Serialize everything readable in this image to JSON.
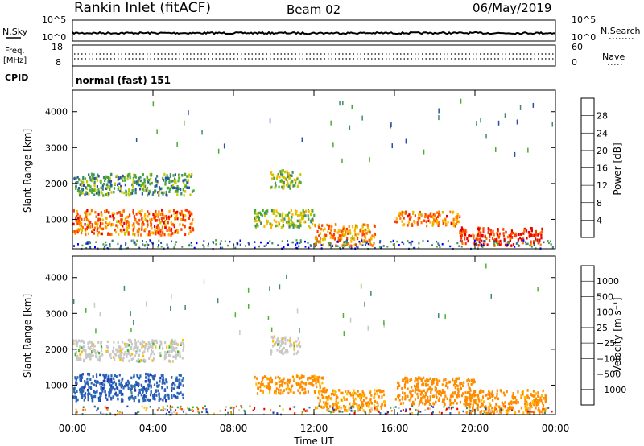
{
  "header": {
    "station": "Rankin Inlet (fitACF)",
    "beam": "Beam 02",
    "date": "06/May/2019"
  },
  "noise_panel": {
    "left_label": "N.Sky",
    "right_label": "N.Search",
    "left_ticks": [
      "10^5",
      "10^0"
    ],
    "right_ticks": [
      "10^5",
      "10^0"
    ]
  },
  "freq_panel": {
    "left_label_1": "Freq.",
    "left_label_2": "[MHz]",
    "right_label": "Nave",
    "left_ticks": [
      "18",
      "8"
    ],
    "right_ticks": [
      "60",
      "0"
    ]
  },
  "cpid": {
    "label": "CPID",
    "value": "normal (fast) 151"
  },
  "colors": {
    "power": [
      "#0000ff",
      "#2a4fa8",
      "#3c8c6a",
      "#4caa32",
      "#c8c800",
      "#ffb400",
      "#ff7800",
      "#ff3c00",
      "#e60000"
    ],
    "velocity": [
      "#e60000",
      "#ff5a00",
      "#ff8c00",
      "#ffbe00",
      "#c8c8c8",
      "#4cb432",
      "#3c8c6a",
      "#2a64b4",
      "#1e3cb4"
    ]
  },
  "chart_data": [
    {
      "type": "heatmap",
      "quantity": "power",
      "ylabel": "Slant Range [km]",
      "xlabel": "",
      "y_ticks": [
        1000,
        2000,
        3000,
        4000
      ],
      "ylim": [
        180,
        4600
      ],
      "colorbar_label": "Power [dB]",
      "colorbar_ticks": [
        "4",
        "8",
        "12",
        "16",
        "20",
        "24",
        "28"
      ],
      "colorbar_range": [
        0,
        30
      ],
      "features": [
        {
          "t_start": 0.0,
          "t_end": 6.0,
          "r_min": 600,
          "r_max": 1300,
          "level": 22
        },
        {
          "t_start": 0.0,
          "t_end": 6.0,
          "r_min": 1700,
          "r_max": 2300,
          "level": 10
        },
        {
          "t_start": 9.8,
          "t_end": 11.3,
          "r_min": 1900,
          "r_max": 2400,
          "level": 14
        },
        {
          "t_start": 9.0,
          "t_end": 12.0,
          "r_min": 800,
          "r_max": 1300,
          "level": 14
        },
        {
          "t_start": 12.0,
          "t_end": 15.0,
          "r_min": 300,
          "r_max": 900,
          "level": 20
        },
        {
          "t_start": 16.0,
          "t_end": 19.2,
          "r_min": 850,
          "r_max": 1250,
          "level": 22
        },
        {
          "t_start": 19.2,
          "t_end": 23.3,
          "r_min": 300,
          "r_max": 800,
          "level": 26
        }
      ]
    },
    {
      "type": "heatmap",
      "quantity": "velocity",
      "ylabel": "Slant Range [km]",
      "xlabel": "Time UT",
      "x_ticks": [
        "00:00",
        "04:00",
        "08:00",
        "12:00",
        "16:00",
        "20:00",
        "00:00"
      ],
      "y_ticks": [
        1000,
        2000,
        3000,
        4000
      ],
      "ylim": [
        180,
        4600
      ],
      "colorbar_label": "Velocity [m s⁻¹]",
      "colorbar_ticks": [
        "−1000",
        "−500",
        "−100",
        "−25",
        "25",
        "100",
        "500",
        "1000"
      ],
      "features": [
        {
          "t_start": 0.0,
          "t_end": 5.5,
          "r_min": 600,
          "r_max": 1350,
          "velocity": 800
        },
        {
          "t_start": 0.0,
          "t_end": 5.5,
          "r_min": 1700,
          "r_max": 2300,
          "velocity": 0
        },
        {
          "t_start": 9.8,
          "t_end": 11.3,
          "r_min": 1900,
          "r_max": 2400,
          "velocity": 0
        },
        {
          "t_start": 9.0,
          "t_end": 12.5,
          "r_min": 800,
          "r_max": 1300,
          "velocity": -150
        },
        {
          "t_start": 12.0,
          "t_end": 15.5,
          "r_min": 300,
          "r_max": 900,
          "velocity": -120
        },
        {
          "t_start": 16.0,
          "t_end": 20.0,
          "r_min": 500,
          "r_max": 1250,
          "velocity": -200
        },
        {
          "t_start": 19.5,
          "t_end": 23.5,
          "r_min": 250,
          "r_max": 900,
          "velocity": -150
        }
      ]
    }
  ]
}
